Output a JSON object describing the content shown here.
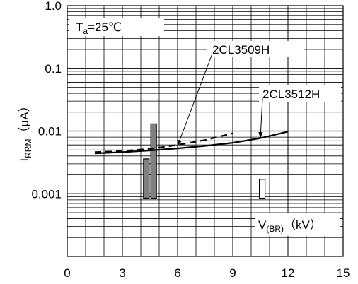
{
  "chart_data": {
    "type": "line",
    "ylabel_main": "I",
    "ylabel_sub": "RRM",
    "ylabel_unit": "（μA）",
    "xlabel_main": "V",
    "xlabel_sub": "(BR)",
    "xlabel_unit": "（kV）",
    "condition_main": "T",
    "condition_sub": "a",
    "condition_value": "=25℃",
    "x_scale": "linear",
    "y_scale": "log",
    "xlim": [
      0,
      15
    ],
    "ylim": [
      0.0001,
      1.0
    ],
    "x_ticks": [
      0,
      3,
      6,
      9,
      12,
      15
    ],
    "x_tick_labels": [
      "0",
      "3",
      "6",
      "9",
      "12",
      "15"
    ],
    "y_tick_labels": [
      {
        "value": 1.0,
        "label": "1.0"
      },
      {
        "value": 0.1,
        "label": "0.1"
      },
      {
        "value": 0.01,
        "label": "0.01"
      },
      {
        "value": 0.001,
        "label": "0.001"
      }
    ],
    "grid": true,
    "series": [
      {
        "name": "2CL3509H",
        "style": "dashed",
        "color": "#000000",
        "points": [
          [
            1.5,
            0.0046
          ],
          [
            3.0,
            0.0048
          ],
          [
            4.5,
            0.0052
          ],
          [
            6.0,
            0.006
          ],
          [
            7.5,
            0.0072
          ],
          [
            9.0,
            0.0092
          ]
        ]
      },
      {
        "name": "2CL3512H",
        "style": "solid",
        "color": "#000000",
        "points": [
          [
            1.5,
            0.0044
          ],
          [
            3.0,
            0.0046
          ],
          [
            4.5,
            0.0049
          ],
          [
            6.0,
            0.0053
          ],
          [
            7.5,
            0.0058
          ],
          [
            9.0,
            0.0065
          ],
          [
            10.5,
            0.0077
          ],
          [
            12.0,
            0.0098
          ]
        ]
      }
    ],
    "annotations": [
      {
        "text": "2CL3509H",
        "points_to": [
          6.0,
          0.0058
        ]
      },
      {
        "text": "2CL3512H",
        "points_to": [
          10.5,
          0.0077
        ]
      }
    ],
    "range_bars": [
      {
        "x": 4.3,
        "low": 0.00085,
        "high": 0.0036,
        "fill": "#808080"
      },
      {
        "x": 4.7,
        "low": 0.00085,
        "high": 0.013,
        "fill": "#808080"
      },
      {
        "x": 10.6,
        "low": 0.00085,
        "high": 0.0017,
        "fill": "#ffffff"
      }
    ]
  }
}
